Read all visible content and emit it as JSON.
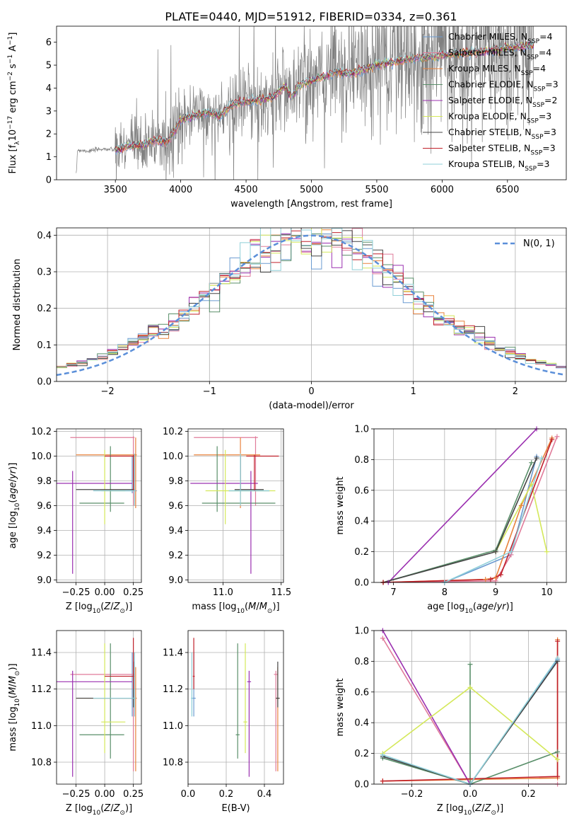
{
  "title": "PLATE=0440, MJD=51912, FIBERID=0334, z=0.361",
  "models": [
    {
      "name": "Chabrier MILES, N",
      "sub": "SSP",
      "tail": "=4",
      "color": "#6b9bd1"
    },
    {
      "name": "Salpeter MILES, N",
      "sub": "SSP",
      "tail": "=4",
      "color": "#e07b9a"
    },
    {
      "name": "Kroupa MILES, N",
      "sub": "SSP",
      "tail": "=4",
      "color": "#e8823c"
    },
    {
      "name": "Chabrier ELODIE, N",
      "sub": "SSP",
      "tail": "=3",
      "color": "#5a8f6a"
    },
    {
      "name": "Salpeter ELODIE, N",
      "sub": "SSP",
      "tail": "=2",
      "color": "#9b30b0"
    },
    {
      "name": "Kroupa ELODIE, N",
      "sub": "SSP",
      "tail": "=3",
      "color": "#d4e85a"
    },
    {
      "name": "Chabrier STELIB, N",
      "sub": "SSP",
      "tail": "=3",
      "color": "#444444"
    },
    {
      "name": "Salpeter STELIB, N",
      "sub": "SSP",
      "tail": "=3",
      "color": "#c0202a"
    },
    {
      "name": "Kroupa STELIB, N",
      "sub": "SSP",
      "tail": "=3",
      "color": "#8fcfd8"
    }
  ],
  "chart_data": [
    {
      "id": "spectrum",
      "type": "line",
      "xlabel": "wavelength [Angstrom, rest frame]",
      "ylabel": "Flux [f",
      "ylabel_tail": "10",
      "xlim": [
        3050,
        6950
      ],
      "ylim": [
        0,
        6.7
      ],
      "xticks": [
        "3500",
        "4000",
        "4500",
        "5000",
        "5500",
        "6000",
        "6500"
      ],
      "xtick_values": [
        3500,
        4000,
        4500,
        5000,
        5500,
        6000,
        6500
      ],
      "yticks": [
        "0",
        "1",
        "2",
        "3",
        "4",
        "5",
        "6"
      ],
      "yticks_values": [
        0,
        1,
        2,
        3,
        4,
        5,
        6
      ],
      "data_color": "#808080",
      "data_series_name": "observed spectrum",
      "continuum_points": [
        [
          3200,
          0.1
        ],
        [
          3210,
          1.3
        ],
        [
          3300,
          1.25
        ],
        [
          3400,
          1.35
        ],
        [
          3500,
          1.3
        ],
        [
          3600,
          1.45
        ],
        [
          3700,
          1.5
        ],
        [
          3800,
          1.7
        ],
        [
          3900,
          1.65
        ],
        [
          3950,
          2.1
        ],
        [
          4000,
          2.6
        ],
        [
          4100,
          2.8
        ],
        [
          4200,
          2.9
        ],
        [
          4300,
          2.8
        ],
        [
          4400,
          3.3
        ],
        [
          4500,
          3.4
        ],
        [
          4600,
          3.5
        ],
        [
          4700,
          3.6
        ],
        [
          4800,
          4.1
        ],
        [
          4850,
          3.6
        ],
        [
          4900,
          4.1
        ],
        [
          5000,
          4.3
        ],
        [
          5100,
          4.5
        ],
        [
          5200,
          4.7
        ],
        [
          5300,
          4.6
        ],
        [
          5400,
          4.8
        ],
        [
          5500,
          5.0
        ],
        [
          5600,
          5.1
        ],
        [
          5700,
          5.2
        ],
        [
          5800,
          5.3
        ],
        [
          5900,
          5.35
        ],
        [
          6000,
          5.4
        ],
        [
          6100,
          5.5
        ],
        [
          6200,
          5.55
        ],
        [
          6300,
          5.6
        ],
        [
          6400,
          5.65
        ],
        [
          6500,
          5.75
        ],
        [
          6600,
          5.8
        ],
        [
          6700,
          5.85
        ]
      ]
    },
    {
      "id": "residuals",
      "type": "line",
      "xlabel": "(data-model)/error",
      "ylabel": "Normed distribution",
      "legend": "N(0, 1)",
      "xlim": [
        -2.5,
        2.5
      ],
      "ylim": [
        0,
        0.42
      ],
      "xticks": [
        "−2",
        "−1",
        "0",
        "1",
        "2"
      ],
      "xtick_values": [
        -2,
        -1,
        0,
        1,
        2
      ],
      "yticks": [
        "0.0",
        "0.1",
        "0.2",
        "0.3",
        "0.4"
      ],
      "yticks_values": [
        0,
        0.1,
        0.2,
        0.3,
        0.4
      ],
      "bin_width": 0.1,
      "gauss_color": "#5b8fd9"
    },
    {
      "id": "age-vs-Z",
      "type": "scatter",
      "xlabel": "Z [log",
      "ylabel": "age  [log",
      "xlim": [
        -0.42,
        0.32
      ],
      "ylim": [
        8.98,
        10.22
      ],
      "xticks": [
        "−0.25",
        "0.00",
        "0.25"
      ],
      "xtick_values": [
        -0.25,
        0,
        0.25
      ],
      "yticks": [
        "9.0",
        "9.2",
        "9.4",
        "9.6",
        "9.8",
        "10.0",
        "10.2"
      ],
      "yticks_values": [
        9.0,
        9.2,
        9.4,
        9.6,
        9.8,
        10.0,
        10.2
      ]
    },
    {
      "id": "age-vs-mass",
      "type": "scatter",
      "xlabel": "mass [log",
      "xlim": [
        10.7,
        11.52
      ],
      "ylim": [
        8.98,
        10.22
      ],
      "xticks": [
        "11.0",
        "11.5"
      ],
      "xtick_values": [
        11.0,
        11.5
      ],
      "yticks": [
        "9.0",
        "9.2",
        "9.4",
        "9.6",
        "9.8",
        "10.0",
        "10.2"
      ],
      "yticks_values": [
        9.0,
        9.2,
        9.4,
        9.6,
        9.8,
        10.0,
        10.2
      ]
    },
    {
      "id": "weight-vs-age",
      "type": "line",
      "xlabel": "age  [log",
      "ylabel": "mass weight",
      "xlim": [
        6.62,
        10.38
      ],
      "ylim": [
        0,
        1
      ],
      "xticks": [
        "7",
        "8",
        "9",
        "10"
      ],
      "xtick_values": [
        7,
        8,
        9,
        10
      ],
      "yticks": [
        "0.0",
        "0.2",
        "0.4",
        "0.6",
        "0.8",
        "1.0"
      ],
      "yticks_values": [
        0,
        0.2,
        0.4,
        0.6,
        0.8,
        1.0
      ],
      "series": [
        {
          "model": 0,
          "points": [
            [
              8.0,
              0.0
            ],
            [
              9.3,
              0.18
            ],
            [
              9.8,
              0.82
            ]
          ]
        },
        {
          "model": 1,
          "points": [
            [
              6.8,
              0.0
            ],
            [
              9.0,
              0.01
            ],
            [
              9.3,
              0.18
            ],
            [
              10.2,
              0.95
            ]
          ]
        },
        {
          "model": 2,
          "points": [
            [
              6.8,
              0.0
            ],
            [
              8.8,
              0.02
            ],
            [
              9.0,
              0.03
            ],
            [
              9.5,
              0.5
            ],
            [
              10.1,
              0.94
            ]
          ]
        },
        {
          "model": 3,
          "points": [
            [
              6.8,
              0.0
            ],
            [
              9.0,
              0.21
            ],
            [
              9.7,
              0.78
            ]
          ]
        },
        {
          "model": 4,
          "points": [
            [
              6.9,
              0.0
            ],
            [
              9.8,
              1.0
            ]
          ]
        },
        {
          "model": 5,
          "points": [
            [
              9.0,
              0.2
            ],
            [
              9.7,
              0.64
            ],
            [
              10.0,
              0.2
            ]
          ]
        },
        {
          "model": 6,
          "points": [
            [
              6.8,
              0.0
            ],
            [
              9.0,
              0.2
            ],
            [
              9.8,
              0.81
            ]
          ]
        },
        {
          "model": 7,
          "points": [
            [
              6.8,
              0.0
            ],
            [
              8.9,
              0.02
            ],
            [
              9.1,
              0.05
            ],
            [
              10.1,
              0.93
            ]
          ]
        },
        {
          "model": 8,
          "points": [
            [
              8.0,
              0.0
            ],
            [
              9.3,
              0.2
            ],
            [
              9.9,
              0.81
            ]
          ]
        }
      ]
    },
    {
      "id": "mass-vs-Z",
      "type": "scatter",
      "xlabel": "Z [log",
      "ylabel": "mass [log",
      "xlim": [
        -0.42,
        0.32
      ],
      "ylim": [
        10.68,
        11.52
      ],
      "xticks": [
        "−0.25",
        "0.00",
        "0.25"
      ],
      "xtick_values": [
        -0.25,
        0,
        0.25
      ],
      "yticks": [
        "10.8",
        "11.0",
        "11.2",
        "11.4"
      ],
      "yticks_values": [
        10.8,
        11.0,
        11.2,
        11.4
      ]
    },
    {
      "id": "mass-vs-EBV",
      "type": "scatter",
      "xlabel": "E(B-V)",
      "xlim": [
        0.0,
        0.5
      ],
      "ylim": [
        10.68,
        11.52
      ],
      "xticks": [
        "0.0",
        "0.2",
        "0.4"
      ],
      "xtick_values": [
        0,
        0.2,
        0.4
      ],
      "yticks": [
        "10.8",
        "11.0",
        "11.2",
        "11.4"
      ],
      "yticks_values": [
        10.8,
        11.0,
        11.2,
        11.4
      ]
    },
    {
      "id": "weight-vs-Z",
      "type": "line",
      "xlabel": "Z [log",
      "ylabel": "mass weight",
      "xlim": [
        -0.33,
        0.33
      ],
      "ylim": [
        0,
        1
      ],
      "xticks": [
        "−0.2",
        "0.0",
        "0.2"
      ],
      "xtick_values": [
        -0.2,
        0,
        0.2
      ],
      "yticks": [
        "0.0",
        "0.2",
        "0.4",
        "0.6",
        "0.8",
        "1.0"
      ],
      "yticks_values": [
        0,
        0.2,
        0.4,
        0.6,
        0.8,
        1.0
      ],
      "series": [
        {
          "model": 0,
          "points": [
            [
              -0.3,
              0.18
            ],
            [
              0.0,
              0.0
            ],
            [
              0.3,
              0.81
            ]
          ]
        },
        {
          "model": 1,
          "points": [
            [
              -0.3,
              0.95
            ],
            [
              0.0,
              0.0
            ],
            [
              0.3,
              0.0
            ]
          ]
        },
        {
          "model": 2,
          "points": [
            [
              -0.3,
              0.02
            ],
            [
              0.3,
              0.04
            ],
            [
              0.3,
              0.94
            ]
          ]
        },
        {
          "model": 3,
          "points": [
            [
              -0.3,
              0.17
            ],
            [
              0.0,
              0.0
            ],
            [
              0.3,
              0.21
            ],
            [
              0.0,
              0.0
            ],
            [
              0.0,
              0.78
            ]
          ]
        },
        {
          "model": 4,
          "points": [
            [
              -0.3,
              1.0
            ],
            [
              0.0,
              0.0
            ]
          ]
        },
        {
          "model": 5,
          "points": [
            [
              -0.3,
              0.2
            ],
            [
              0.0,
              0.63
            ],
            [
              0.3,
              0.16
            ]
          ]
        },
        {
          "model": 6,
          "points": [
            [
              -0.3,
              0.18
            ],
            [
              0.0,
              0.0
            ],
            [
              0.3,
              0.8
            ]
          ]
        },
        {
          "model": 7,
          "points": [
            [
              -0.3,
              0.02
            ],
            [
              0.3,
              0.05
            ],
            [
              0.3,
              0.93
            ]
          ]
        },
        {
          "model": 8,
          "points": [
            [
              -0.3,
              0.19
            ],
            [
              0.0,
              0.0
            ],
            [
              0.3,
              0.82
            ]
          ]
        }
      ]
    }
  ],
  "param_points": [
    {
      "model": 0,
      "Z": 0.24,
      "Zlo": 0.04,
      "Zhi": 0.28,
      "age": 9.72,
      "agelo": 9.7,
      "agehi": 10.0,
      "mass": 11.15,
      "masslo": 11.05,
      "masshi": 11.4,
      "ebv": 0.03,
      "ebvlo": 0.02,
      "ebvhi": 0.04
    },
    {
      "model": 1,
      "Z": 0.25,
      "Zlo": -0.3,
      "Zhi": 0.26,
      "age": 10.15,
      "agelo": 9.6,
      "agehi": 10.16,
      "mass": 11.28,
      "masslo": 10.75,
      "masshi": 11.3,
      "ebv": 0.46,
      "ebvlo": 0.45,
      "ebvhi": 0.47
    },
    {
      "model": 2,
      "Z": 0.27,
      "Zlo": -0.25,
      "Zhi": 0.28,
      "age": 10.01,
      "agelo": 9.58,
      "agehi": 10.15,
      "mass": 11.15,
      "masslo": 10.75,
      "masshi": 11.32,
      "ebv": 0.47,
      "ebvlo": 0.46,
      "ebvhi": 0.48
    },
    {
      "model": 3,
      "Z": 0.05,
      "Zlo": -0.22,
      "Zhi": 0.17,
      "age": 9.62,
      "agelo": 9.55,
      "agehi": 10.08,
      "mass": 10.95,
      "masslo": 10.82,
      "masshi": 11.45,
      "ebv": 0.26,
      "ebvlo": 0.25,
      "ebvhi": 0.27
    },
    {
      "model": 4,
      "Z": -0.28,
      "Zlo": -0.42,
      "Zhi": 0.24,
      "age": 9.78,
      "agelo": 9.05,
      "agehi": 9.88,
      "mass": 11.24,
      "masslo": 10.72,
      "masshi": 11.3,
      "ebv": 0.32,
      "ebvlo": 0.31,
      "ebvhi": 0.33
    },
    {
      "model": 5,
      "Z": 0.0,
      "Zlo": -0.03,
      "Zhi": 0.18,
      "age": 9.72,
      "agelo": 9.45,
      "agehi": 10.05,
      "mass": 11.02,
      "masslo": 10.85,
      "masshi": 11.45,
      "ebv": 0.3,
      "ebvlo": 0.29,
      "ebvhi": 0.31
    },
    {
      "model": 6,
      "Z": 0.25,
      "Zlo": -0.25,
      "Zhi": 0.26,
      "age": 9.73,
      "agelo": 9.72,
      "agehi": 10.0,
      "mass": 11.15,
      "masslo": 11.1,
      "masshi": 11.35,
      "ebv": 0.47,
      "ebvlo": 0.46,
      "ebvhi": 0.48
    },
    {
      "model": 7,
      "Z": 0.25,
      "Zlo": 0.0,
      "Zhi": 0.26,
      "age": 10.0,
      "agelo": 9.72,
      "agehi": 10.01,
      "mass": 11.27,
      "masslo": 11.2,
      "masshi": 11.48,
      "ebv": 0.03,
      "ebvlo": 0.025,
      "ebvhi": 0.035
    },
    {
      "model": 8,
      "Z": 0.26,
      "Zlo": -0.1,
      "Zhi": 0.27,
      "age": 9.72,
      "agelo": 9.6,
      "agehi": 10.02,
      "mass": 11.15,
      "masslo": 11.05,
      "masshi": 11.4,
      "ebv": 0.02,
      "ebvlo": 0.015,
      "ebvhi": 0.025
    }
  ]
}
